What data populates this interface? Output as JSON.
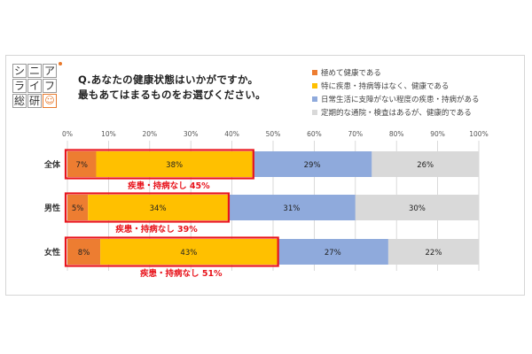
{
  "logo": {
    "chars": [
      "シ",
      "ニ",
      "ア",
      "ラ",
      "イ",
      "フ",
      "総",
      "研",
      "☺"
    ]
  },
  "question": {
    "line1": "Q.あなたの健康状態はいかがですか。",
    "line2": "最もあてはまるものをお選びください。"
  },
  "colors": {
    "extremely_healthy": "#ed7d31",
    "no_disease": "#ffc000",
    "minor_disease": "#8faadc",
    "regular_visits": "#d9d9d9",
    "highlight": "#e8141c",
    "grid": "#d0d0d0"
  },
  "chart_data": {
    "type": "bar",
    "orientation": "horizontal",
    "stacked": true,
    "categories": [
      "全体",
      "男性",
      "女性"
    ],
    "xlim": [
      0,
      100
    ],
    "x_ticks": [
      "0%",
      "10%",
      "20%",
      "30%",
      "40%",
      "50%",
      "60%",
      "70%",
      "80%",
      "90%",
      "100%"
    ],
    "grid": true,
    "legend_position": "top-right",
    "series": [
      {
        "name": "極めて健康である",
        "color_key": "extremely_healthy",
        "values": [
          7,
          5,
          8
        ],
        "labels": [
          "7%",
          "5%",
          "8%"
        ]
      },
      {
        "name": "特に疾患・持病等はなく、健康である",
        "color_key": "no_disease",
        "values": [
          38,
          34,
          43
        ],
        "labels": [
          "38%",
          "34%",
          "43%"
        ]
      },
      {
        "name": "日常生活に支障がない程度の疾患・持病がある",
        "color_key": "minor_disease",
        "values": [
          29,
          31,
          27
        ],
        "labels": [
          "29%",
          "31%",
          "27%"
        ]
      },
      {
        "name": "定期的な通院・検査はあるが、健康的である",
        "color_key": "regular_visits",
        "values": [
          26,
          30,
          22
        ],
        "labels": [
          "26%",
          "30%",
          "22%"
        ]
      }
    ],
    "annotations": [
      {
        "category": "全体",
        "text": "疾患・持病なし 45%",
        "value": 45
      },
      {
        "category": "男性",
        "text": "疾患・持病なし 39%",
        "value": 39
      },
      {
        "category": "女性",
        "text": "疾患・持病なし 51%",
        "value": 51
      }
    ]
  }
}
